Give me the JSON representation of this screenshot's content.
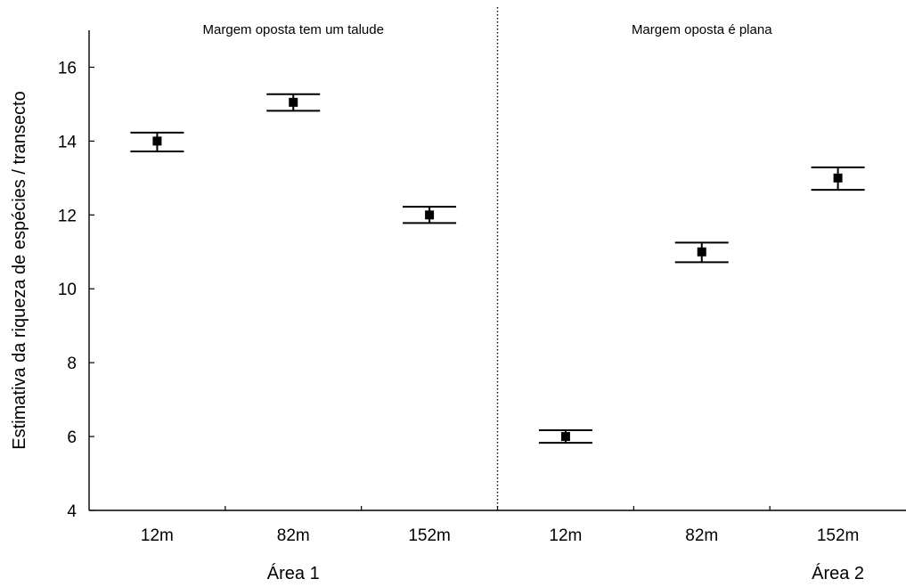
{
  "chart_data": {
    "type": "scatter",
    "title": "",
    "xlabel": "",
    "ylabel": "Estimativa da riqueza de espécies / transecto",
    "ylim": [
      4,
      17
    ],
    "yticks": [
      4,
      6,
      8,
      10,
      12,
      14,
      16
    ],
    "grid": false,
    "legend": "none",
    "categories": [
      "12m",
      "82m",
      "152m",
      "12m",
      "82m",
      "152m"
    ],
    "panels": [
      {
        "label": "Margem oposta tem um talude",
        "categories": [
          0,
          1,
          2
        ]
      },
      {
        "label": "Margem oposta é plana",
        "categories": [
          3,
          4,
          5
        ]
      }
    ],
    "group_labels": [
      "Área 1",
      "Área 2"
    ],
    "series": [
      {
        "values": [
          14.0,
          15.05,
          12.0,
          6.0,
          11.0,
          13.0
        ],
        "lower": [
          13.72,
          14.82,
          11.78,
          5.83,
          10.72,
          12.68
        ],
        "upper": [
          14.23,
          15.27,
          12.22,
          6.17,
          11.25,
          13.29
        ]
      }
    ],
    "colors": {
      "marks": "#000000",
      "axes": "#000000"
    }
  }
}
